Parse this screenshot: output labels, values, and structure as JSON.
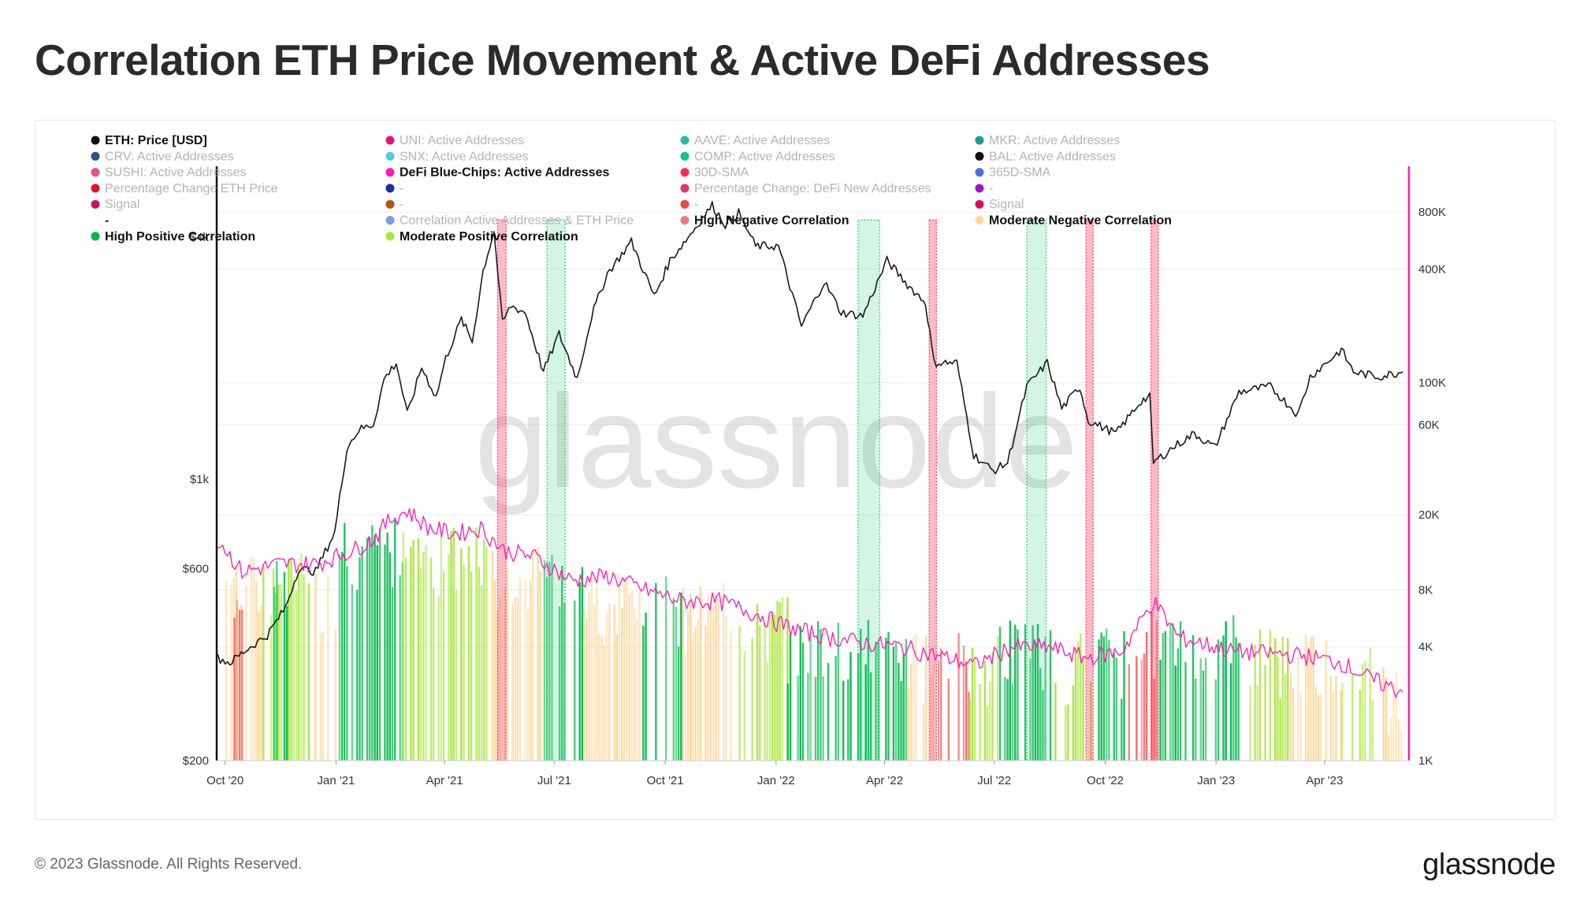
{
  "title": "Correlation ETH Price Movement & Active DeFi Addresses",
  "footer": {
    "copyright": "© 2023 Glassnode. All Rights Reserved.",
    "brand": "glassnode"
  },
  "watermark": "glassnode",
  "colors": {
    "price_line": "#1a1a1a",
    "active_addresses_line": "#ff1ab3",
    "high_positive": "#00b84a",
    "moderate_positive": "#a8e63a",
    "high_negative": "#f26b6b",
    "moderate_negative": "#ffd79a",
    "negative_band": "#ff3b5c",
    "positive_band": "#2ecc7a",
    "right_axis": "#ff1ab3"
  },
  "chart_data": {
    "type": "line",
    "legend": [
      {
        "label": "ETH: Price [USD]",
        "color": "#111111",
        "active": true
      },
      {
        "label": "UNI: Active Addresses",
        "color": "#e8127a",
        "active": false
      },
      {
        "label": "AAVE: Active Addresses",
        "color": "#2bb8b0",
        "active": false
      },
      {
        "label": "MKR: Active Addresses",
        "color": "#1a9e88",
        "active": false
      },
      {
        "label": "CRV: Active Addresses",
        "color": "#2f4f8f",
        "active": false
      },
      {
        "label": "SNX: Active Addresses",
        "color": "#52c6e8",
        "active": false
      },
      {
        "label": "COMP: Active Addresses",
        "color": "#12c48f",
        "active": false
      },
      {
        "label": "BAL: Active Addresses",
        "color": "#111111",
        "active": false
      },
      {
        "label": "SUSHI: Active Addresses",
        "color": "#e0508f",
        "active": false
      },
      {
        "label": "DeFi Blue-Chips: Active Addresses",
        "color": "#ff1ab3",
        "active": true
      },
      {
        "label": "30D-SMA",
        "color": "#ff2a55",
        "active": false
      },
      {
        "label": "365D-SMA",
        "color": "#4a6ee8",
        "active": false
      },
      {
        "label": "Percentage Change ETH Price",
        "color": "#e8102a",
        "active": false
      },
      {
        "label": "-",
        "color": "#1a2e9e",
        "active": false
      },
      {
        "label": "Percentage Change: DeFi New Addresses",
        "color": "#d93a6a",
        "active": false
      },
      {
        "label": "-",
        "color": "#9a18c8",
        "active": false
      },
      {
        "label": "Signal",
        "color": "#c8106a",
        "active": false
      },
      {
        "label": "-",
        "color": "#b8540e",
        "active": false
      },
      {
        "label": "-",
        "color": "#e84a3a",
        "active": false
      },
      {
        "label": "Signal",
        "color": "#d8105a",
        "active": false
      },
      {
        "label": "-",
        "color": "#ffffff",
        "active": true
      },
      {
        "label": "Correlation Active Addresses & ETH Price",
        "color": "#7b9ae8",
        "active": false
      },
      {
        "label": "High Negative Correlation",
        "color": "#f27a7a",
        "active": true
      },
      {
        "label": "Moderate Negative Correlation",
        "color": "#ffd79a",
        "active": true
      },
      {
        "label": "High Positive Correlation",
        "color": "#00b84a",
        "active": true
      },
      {
        "label": "Moderate Positive Correlation",
        "color": "#a8e63a",
        "active": true
      }
    ],
    "x_ticks": [
      "Oct '20",
      "Jan '21",
      "Apr '21",
      "Jul '21",
      "Oct '21",
      "Jan '22",
      "Apr '22",
      "Jul '22",
      "Oct '22",
      "Jan '23",
      "Apr '23"
    ],
    "x_tick_dates": [
      "2020-10-01",
      "2021-01-01",
      "2021-04-01",
      "2021-07-01",
      "2021-10-01",
      "2022-01-01",
      "2022-04-01",
      "2022-07-01",
      "2022-10-01",
      "2023-01-01",
      "2023-04-01"
    ],
    "x_range": [
      "2020-09-24",
      "2023-06-10"
    ],
    "y_left": {
      "label": "",
      "scale": "log",
      "range": [
        200,
        6000
      ],
      "ticks": [
        {
          "v": 200,
          "t": "$200"
        },
        {
          "v": 600,
          "t": "$600"
        },
        {
          "v": 1000,
          "t": "$1k"
        },
        {
          "v": 4000,
          "t": "$4k"
        }
      ]
    },
    "y_right": {
      "label": "",
      "scale": "log",
      "range": [
        1000,
        1400000
      ],
      "ticks": [
        {
          "v": 1000,
          "t": "1K"
        },
        {
          "v": 4000,
          "t": "4K"
        },
        {
          "v": 8000,
          "t": "8K"
        },
        {
          "v": 20000,
          "t": "20K"
        },
        {
          "v": 60000,
          "t": "60K"
        },
        {
          "v": 100000,
          "t": "100K"
        },
        {
          "v": 400000,
          "t": "400K"
        },
        {
          "v": 800000,
          "t": "800K"
        }
      ]
    },
    "series": [
      {
        "name": "ETH: Price [USD]",
        "axis": "left",
        "points": [
          [
            "2020-09-25",
            360
          ],
          [
            "2020-10-05",
            350
          ],
          [
            "2020-10-20",
            380
          ],
          [
            "2020-11-05",
            410
          ],
          [
            "2020-11-20",
            480
          ],
          [
            "2020-12-01",
            600
          ],
          [
            "2020-12-15",
            590
          ],
          [
            "2020-12-31",
            740
          ],
          [
            "2021-01-10",
            1200
          ],
          [
            "2021-01-20",
            1330
          ],
          [
            "2021-02-01",
            1370
          ],
          [
            "2021-02-10",
            1780
          ],
          [
            "2021-02-20",
            1950
          ],
          [
            "2021-03-01",
            1450
          ],
          [
            "2021-03-13",
            1900
          ],
          [
            "2021-03-25",
            1600
          ],
          [
            "2021-04-02",
            2000
          ],
          [
            "2021-04-15",
            2500
          ],
          [
            "2021-04-24",
            2200
          ],
          [
            "2021-05-03",
            3300
          ],
          [
            "2021-05-12",
            4150
          ],
          [
            "2021-05-19",
            2450
          ],
          [
            "2021-05-26",
            2700
          ],
          [
            "2021-06-07",
            2600
          ],
          [
            "2021-06-22",
            1850
          ],
          [
            "2021-07-05",
            2300
          ],
          [
            "2021-07-20",
            1780
          ],
          [
            "2021-08-01",
            2550
          ],
          [
            "2021-08-14",
            3250
          ],
          [
            "2021-09-03",
            3900
          ],
          [
            "2021-09-22",
            2850
          ],
          [
            "2021-10-05",
            3500
          ],
          [
            "2021-10-20",
            4000
          ],
          [
            "2021-11-09",
            4800
          ],
          [
            "2021-11-20",
            4300
          ],
          [
            "2021-12-01",
            4600
          ],
          [
            "2021-12-15",
            3800
          ],
          [
            "2022-01-03",
            3800
          ],
          [
            "2022-01-22",
            2400
          ],
          [
            "2022-02-10",
            3100
          ],
          [
            "2022-02-24",
            2600
          ],
          [
            "2022-03-14",
            2550
          ],
          [
            "2022-04-03",
            3500
          ],
          [
            "2022-04-20",
            3050
          ],
          [
            "2022-05-05",
            2750
          ],
          [
            "2022-05-12",
            1950
          ],
          [
            "2022-05-31",
            1950
          ],
          [
            "2022-06-14",
            1150
          ],
          [
            "2022-06-30",
            1050
          ],
          [
            "2022-07-12",
            1100
          ],
          [
            "2022-07-28",
            1700
          ],
          [
            "2022-08-14",
            1950
          ],
          [
            "2022-08-26",
            1500
          ],
          [
            "2022-09-10",
            1700
          ],
          [
            "2022-09-17",
            1400
          ],
          [
            "2022-10-10",
            1300
          ],
          [
            "2022-10-31",
            1570
          ],
          [
            "2022-11-07",
            1600
          ],
          [
            "2022-11-10",
            1100
          ],
          [
            "2022-11-26",
            1200
          ],
          [
            "2022-12-14",
            1300
          ],
          [
            "2022-12-31",
            1200
          ],
          [
            "2023-01-20",
            1650
          ],
          [
            "2023-02-15",
            1700
          ],
          [
            "2023-03-10",
            1450
          ],
          [
            "2023-03-20",
            1800
          ],
          [
            "2023-04-15",
            2100
          ],
          [
            "2023-04-25",
            1850
          ],
          [
            "2023-05-15",
            1800
          ],
          [
            "2023-06-05",
            1850
          ]
        ]
      },
      {
        "name": "DeFi Blue-Chips: Active Addresses",
        "axis": "right",
        "points": [
          [
            "2020-09-25",
            15000
          ],
          [
            "2020-10-15",
            10000
          ],
          [
            "2020-11-15",
            11000
          ],
          [
            "2020-12-15",
            11000
          ],
          [
            "2021-01-15",
            13000
          ],
          [
            "2021-02-01",
            15000
          ],
          [
            "2021-02-15",
            19000
          ],
          [
            "2021-03-01",
            21000
          ],
          [
            "2021-03-20",
            17000
          ],
          [
            "2021-04-10",
            16000
          ],
          [
            "2021-05-01",
            17000
          ],
          [
            "2021-05-20",
            13000
          ],
          [
            "2021-06-15",
            12000
          ],
          [
            "2021-07-15",
            9000
          ],
          [
            "2021-08-15",
            9500
          ],
          [
            "2021-09-15",
            8000
          ],
          [
            "2021-10-15",
            7000
          ],
          [
            "2021-11-15",
            7000
          ],
          [
            "2021-12-15",
            6000
          ],
          [
            "2022-01-15",
            5000
          ],
          [
            "2022-02-15",
            4500
          ],
          [
            "2022-03-15",
            4200
          ],
          [
            "2022-04-15",
            4000
          ],
          [
            "2022-05-15",
            3600
          ],
          [
            "2022-06-15",
            3200
          ],
          [
            "2022-07-15",
            4000
          ],
          [
            "2022-08-15",
            4000
          ],
          [
            "2022-09-15",
            3500
          ],
          [
            "2022-10-15",
            3800
          ],
          [
            "2022-11-10",
            7000
          ],
          [
            "2022-12-01",
            4500
          ],
          [
            "2023-01-15",
            3800
          ],
          [
            "2023-02-15",
            3700
          ],
          [
            "2023-03-15",
            3600
          ],
          [
            "2023-04-15",
            3300
          ],
          [
            "2023-05-10",
            2700
          ],
          [
            "2023-06-05",
            2300
          ]
        ]
      }
    ],
    "correlation_bars": [
      {
        "start": "2020-10-01",
        "end": "2020-10-31",
        "type": "moderate_negative",
        "v": 9000
      },
      {
        "start": "2020-10-08",
        "end": "2020-10-15",
        "type": "high_negative",
        "v": 8500
      },
      {
        "start": "2020-11-01",
        "end": "2020-12-10",
        "type": "moderate_positive",
        "v": 9500
      },
      {
        "start": "2020-11-10",
        "end": "2020-11-25",
        "type": "high_positive",
        "v": 9000
      },
      {
        "start": "2020-12-10",
        "end": "2020-12-31",
        "type": "moderate_negative",
        "v": 8000
      },
      {
        "start": "2021-01-01",
        "end": "2021-02-25",
        "type": "high_positive",
        "v": 14000
      },
      {
        "start": "2021-02-25",
        "end": "2021-03-20",
        "type": "moderate_positive",
        "v": 17000
      },
      {
        "start": "2021-03-20",
        "end": "2021-05-10",
        "type": "moderate_positive",
        "v": 13000
      },
      {
        "start": "2021-05-10",
        "end": "2021-06-20",
        "type": "moderate_negative",
        "v": 10000
      },
      {
        "start": "2021-06-20",
        "end": "2021-07-25",
        "type": "high_positive",
        "v": 11000
      },
      {
        "start": "2021-07-25",
        "end": "2021-09-10",
        "type": "moderate_negative",
        "v": 7500
      },
      {
        "start": "2021-09-10",
        "end": "2021-10-15",
        "type": "high_positive",
        "v": 7000
      },
      {
        "start": "2021-10-15",
        "end": "2021-12-01",
        "type": "moderate_negative",
        "v": 6500
      },
      {
        "start": "2021-12-01",
        "end": "2022-01-10",
        "type": "moderate_positive",
        "v": 5500
      },
      {
        "start": "2022-01-10",
        "end": "2022-03-01",
        "type": "high_positive",
        "v": 4300
      },
      {
        "start": "2022-03-01",
        "end": "2022-04-20",
        "type": "high_positive",
        "v": 4200
      },
      {
        "start": "2022-04-20",
        "end": "2022-05-15",
        "type": "moderate_negative",
        "v": 3500
      },
      {
        "start": "2022-05-15",
        "end": "2022-06-10",
        "type": "high_negative",
        "v": 3600
      },
      {
        "start": "2022-06-10",
        "end": "2022-07-05",
        "type": "moderate_positive",
        "v": 3500
      },
      {
        "start": "2022-07-05",
        "end": "2022-08-20",
        "type": "high_positive",
        "v": 4200
      },
      {
        "start": "2022-08-20",
        "end": "2022-09-25",
        "type": "moderate_positive",
        "v": 3500
      },
      {
        "start": "2022-09-25",
        "end": "2022-10-20",
        "type": "high_positive",
        "v": 3800
      },
      {
        "start": "2022-10-20",
        "end": "2022-11-15",
        "type": "high_negative",
        "v": 4800
      },
      {
        "start": "2022-11-15",
        "end": "2023-01-20",
        "type": "high_positive",
        "v": 4500
      },
      {
        "start": "2023-01-20",
        "end": "2023-03-01",
        "type": "moderate_positive",
        "v": 3800
      },
      {
        "start": "2023-03-01",
        "end": "2023-04-15",
        "type": "moderate_negative",
        "v": 3500
      },
      {
        "start": "2023-04-15",
        "end": "2023-05-15",
        "type": "moderate_positive",
        "v": 3000
      },
      {
        "start": "2023-05-15",
        "end": "2023-06-05",
        "type": "moderate_negative",
        "v": 2400
      }
    ],
    "highlight_bands": [
      {
        "start": "2021-05-15",
        "end": "2021-05-22",
        "type": "negative"
      },
      {
        "start": "2021-06-25",
        "end": "2021-07-10",
        "type": "positive"
      },
      {
        "start": "2022-03-10",
        "end": "2022-03-28",
        "type": "positive"
      },
      {
        "start": "2022-05-08",
        "end": "2022-05-14",
        "type": "negative"
      },
      {
        "start": "2022-07-28",
        "end": "2022-08-13",
        "type": "positive"
      },
      {
        "start": "2022-09-15",
        "end": "2022-09-21",
        "type": "negative"
      },
      {
        "start": "2022-11-08",
        "end": "2022-11-14",
        "type": "negative"
      }
    ]
  }
}
